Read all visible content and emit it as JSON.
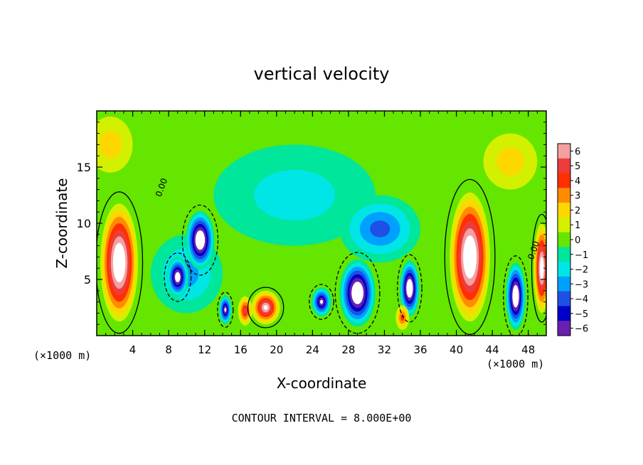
{
  "chart_data": {
    "type": "heatmap",
    "title": "vertical velocity",
    "xlabel": "X-coordinate",
    "ylabel": "Z-coordinate",
    "x_unit": "(×1000 m)",
    "x_unit_right": "(×1000 m)",
    "footer": "CONTOUR INTERVAL = 8.000E+00",
    "xlim": [
      0,
      50
    ],
    "ylim": [
      0,
      20
    ],
    "x_ticks": [
      4,
      8,
      12,
      16,
      20,
      24,
      28,
      32,
      36,
      40,
      44,
      48
    ],
    "y_ticks": [
      5,
      10,
      15
    ],
    "colorbar": {
      "levels": [
        6,
        5,
        4,
        3,
        2,
        1,
        0,
        -1,
        -2,
        -3,
        -4,
        -5,
        -6
      ],
      "colors": [
        "#f4a0a0",
        "#ee3b3b",
        "#ff3000",
        "#ff8c00",
        "#ffd700",
        "#d2f000",
        "#64e600",
        "#00e69b",
        "#00e6e6",
        "#00a0ff",
        "#1e50e6",
        "#0000c8",
        "#6a1fb0"
      ]
    },
    "contour_labels": [
      {
        "text": "0.00",
        "x": 7.5,
        "y": 13.1
      },
      {
        "text": "0.00",
        "x": 48.9,
        "y": 7.5
      }
    ],
    "features": [
      {
        "sign": "positive",
        "x": 2.5,
        "y": 6.5,
        "w": 4.2,
        "h": 10.5,
        "peak": 9
      },
      {
        "sign": "positive",
        "x": 41.5,
        "y": 7.0,
        "w": 4.5,
        "h": 11.5,
        "peak": 9
      },
      {
        "sign": "positive",
        "x": 49.5,
        "y": 6.0,
        "w": 1.8,
        "h": 8,
        "peak": 8
      },
      {
        "sign": "positive",
        "x": 18.8,
        "y": 2.5,
        "w": 3.2,
        "h": 3.0,
        "peak": 7
      },
      {
        "sign": "positive",
        "x": 16.5,
        "y": 2.2,
        "w": 1.6,
        "h": 2.6,
        "peak": 5
      },
      {
        "sign": "positive",
        "x": 34.0,
        "y": 1.6,
        "w": 1.5,
        "h": 2.2,
        "peak": 4
      },
      {
        "sign": "positive",
        "x": 46.0,
        "y": 15.5,
        "w": 6,
        "h": 5,
        "peak": 2
      },
      {
        "sign": "positive",
        "x": 1.5,
        "y": 17.0,
        "w": 5,
        "h": 5,
        "peak": 1.5
      },
      {
        "sign": "negative",
        "x": 11.5,
        "y": 8.5,
        "w": 3.2,
        "h": 5.2,
        "peak": -9
      },
      {
        "sign": "negative",
        "x": 9.0,
        "y": 5.2,
        "w": 2.4,
        "h": 3.6,
        "peak": -8
      },
      {
        "sign": "negative",
        "x": 14.3,
        "y": 2.3,
        "w": 1.4,
        "h": 2.6,
        "peak": -7
      },
      {
        "sign": "negative",
        "x": 29.0,
        "y": 3.8,
        "w": 4.0,
        "h": 6.0,
        "peak": -9
      },
      {
        "sign": "negative",
        "x": 25.0,
        "y": 3.0,
        "w": 2.2,
        "h": 2.6,
        "peak": -7
      },
      {
        "sign": "negative",
        "x": 34.8,
        "y": 4.2,
        "w": 2.2,
        "h": 5.0,
        "peak": -9
      },
      {
        "sign": "negative",
        "x": 46.6,
        "y": 3.5,
        "w": 2.2,
        "h": 6.0,
        "peak": -9
      },
      {
        "sign": "negative",
        "x": 31.5,
        "y": 9.5,
        "w": 9,
        "h": 6,
        "peak": -4
      },
      {
        "sign": "negative",
        "x": 22.0,
        "y": 12.5,
        "w": 18,
        "h": 9,
        "peak": -2
      },
      {
        "sign": "negative",
        "x": 10.0,
        "y": 5.5,
        "w": 8,
        "h": 7,
        "peak": -3
      }
    ]
  }
}
